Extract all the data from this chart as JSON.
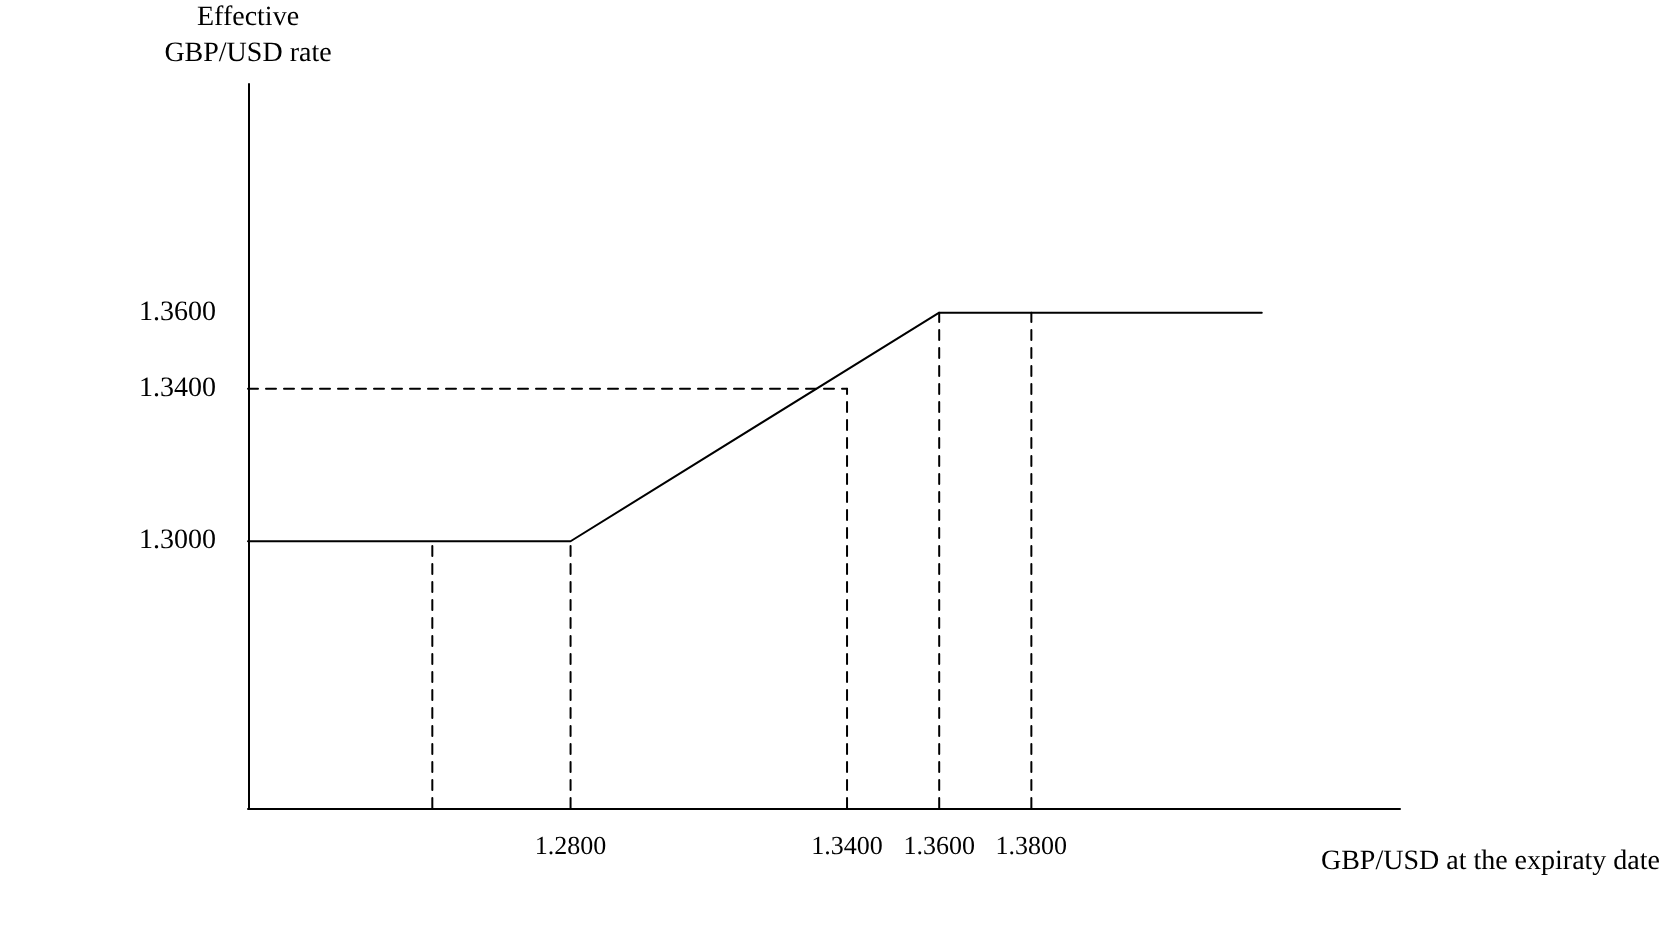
{
  "chart_data": {
    "type": "line",
    "xlabel": "GBP/USD at the expiraty date",
    "ylabel": "Effective\nGBP/USD rate",
    "xlim": [
      1.21,
      1.46
    ],
    "ylim": [
      1.23,
      1.42
    ],
    "xticks": [
      {
        "value": 1.28,
        "label": "1.2800"
      },
      {
        "value": 1.34,
        "label": "1.3400"
      },
      {
        "value": 1.36,
        "label": "1.3600"
      },
      {
        "value": 1.38,
        "label": "1.3800"
      }
    ],
    "yticks": [
      {
        "value": 1.3,
        "label": "1.3000"
      },
      {
        "value": 1.34,
        "label": "1.3400"
      },
      {
        "value": 1.36,
        "label": "1.3600"
      }
    ],
    "grid": false,
    "marker": "none",
    "series": [
      {
        "x": [
          1.21,
          1.28,
          1.36,
          1.43
        ],
        "values": [
          1.3,
          1.3,
          1.36,
          1.36
        ],
        "color": "#000000",
        "line_style": "solid"
      },
      {
        "x": [
          1.21,
          1.34
        ],
        "values": [
          1.34,
          1.34
        ],
        "color": "#000000",
        "line_style": "dashed"
      },
      {
        "x": [
          1.25,
          1.25
        ],
        "values": [
          1.23,
          1.3
        ],
        "color": "#000000",
        "line_style": "dashed"
      },
      {
        "x": [
          1.28,
          1.28
        ],
        "values": [
          1.23,
          1.3
        ],
        "color": "#000000",
        "line_style": "dashed"
      },
      {
        "x": [
          1.34,
          1.34
        ],
        "values": [
          1.23,
          1.34
        ],
        "color": "#000000",
        "line_style": "dashed"
      },
      {
        "x": [
          1.36,
          1.36
        ],
        "values": [
          1.23,
          1.36
        ],
        "color": "#000000",
        "line_style": "dashed"
      },
      {
        "x": [
          1.38,
          1.38
        ],
        "values": [
          1.23,
          1.36
        ],
        "color": "#000000",
        "line_style": "dashed"
      }
    ]
  }
}
